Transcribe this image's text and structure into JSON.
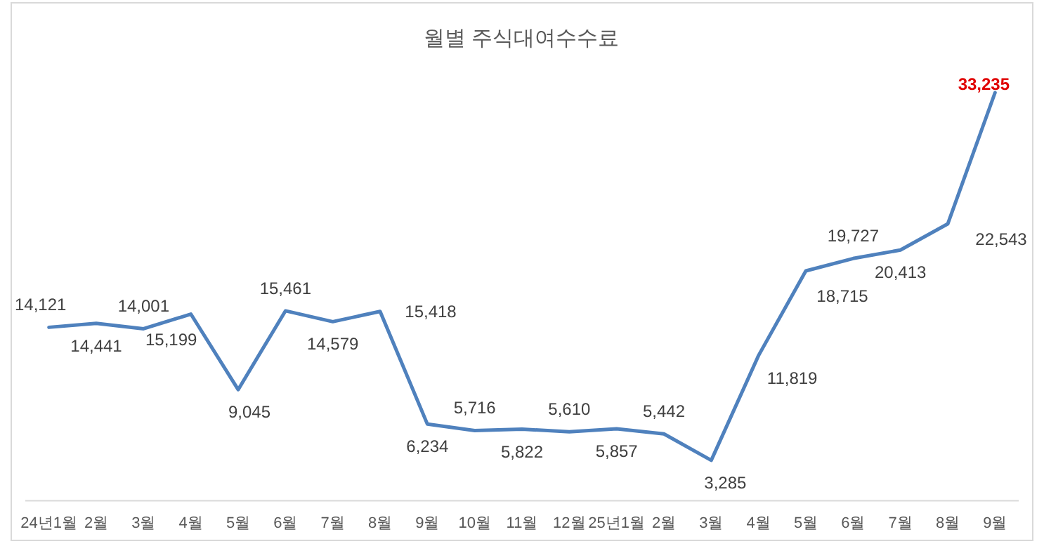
{
  "chart_data": {
    "type": "line",
    "title": "월별 주식대여수수료",
    "categories": [
      "24년1월",
      "2월",
      "3월",
      "4월",
      "5월",
      "6월",
      "7월",
      "8월",
      "9월",
      "10월",
      "11월",
      "12월",
      "25년1월",
      "2월",
      "3월",
      "4월",
      "5월",
      "6월",
      "7월",
      "8월",
      "9월"
    ],
    "series": [
      {
        "color": "#4f81bd",
        "values": [
          14121,
          14441,
          14001,
          15199,
          9045,
          15461,
          14579,
          15418,
          6234,
          5716,
          5822,
          5610,
          5857,
          5442,
          3285,
          11819,
          18715,
          19727,
          20413,
          22543,
          33235
        ],
        "value_labels": [
          "14,121",
          "14,441",
          "14,001",
          "15,199",
          "9,045",
          "15,461",
          "14,579",
          "15,418",
          "6,234",
          "5,716",
          "5,822",
          "5,610",
          "5,857",
          "5,442",
          "3,285",
          "11,819",
          "18,715",
          "19,727",
          "20,413",
          "22,543",
          "33,235"
        ]
      }
    ],
    "grid": false,
    "marker": "none",
    "line_style": "solid"
  }
}
